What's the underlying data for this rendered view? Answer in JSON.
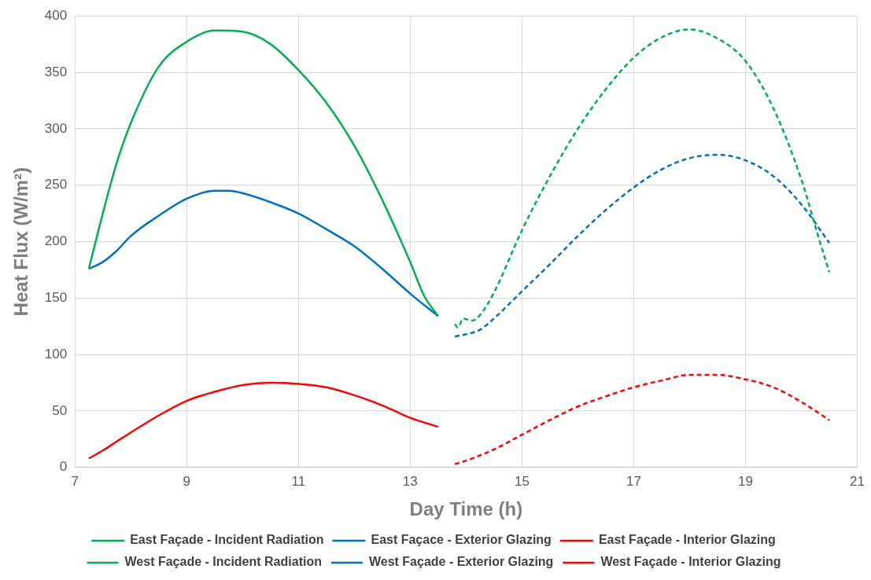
{
  "chart_data": {
    "type": "line",
    "xlabel": "Day Time (h)",
    "ylabel": "Heat Flux (W/m²)",
    "xlim": [
      7,
      21
    ],
    "xticks": [
      7,
      9,
      11,
      13,
      15,
      17,
      19,
      21
    ],
    "ylim": [
      0,
      400
    ],
    "yticks": [
      0,
      50,
      100,
      150,
      200,
      250,
      300,
      350,
      400
    ],
    "grid": true,
    "legend": "bottom",
    "marker": "none",
    "series": [
      {
        "name": "East Façade - Incident Radiation",
        "color": "#00b050",
        "line_style": "solid",
        "x": [
          7.25,
          7.5,
          7.75,
          8,
          8.5,
          9,
          9.5,
          10,
          10.5,
          11,
          11.5,
          12,
          12.5,
          13,
          13.25,
          13.5
        ],
        "values": [
          176,
          225,
          270,
          305,
          355,
          377,
          387,
          386,
          375,
          352,
          323,
          285,
          237,
          182,
          152,
          134
        ]
      },
      {
        "name": "East Façace - Exterior Glazing",
        "color": "#0070c0",
        "line_style": "solid",
        "x": [
          7.25,
          7.5,
          7.75,
          8,
          8.5,
          9,
          9.5,
          9.75,
          10,
          10.5,
          11,
          11.5,
          12,
          12.5,
          13,
          13.5
        ],
        "values": [
          176,
          182,
          192,
          205,
          223,
          238,
          245,
          245,
          243,
          235,
          225,
          211,
          196,
          176,
          154,
          134
        ]
      },
      {
        "name": "East Façade - Interior Glazing",
        "color": "#ff0000",
        "line_style": "solid",
        "x": [
          7.25,
          7.5,
          7.75,
          8,
          8.5,
          9,
          9.5,
          10,
          10.5,
          11,
          11.5,
          12,
          12.5,
          13,
          13.5
        ],
        "values": [
          8,
          15,
          23,
          31,
          46,
          59,
          67,
          73,
          75,
          74,
          71,
          64,
          55,
          44,
          36
        ]
      },
      {
        "name": "West Façade - Incident Radiation",
        "color": "#00b050",
        "line_style": "dashed",
        "x": [
          13.8,
          13.85,
          13.95,
          14.1,
          14.25,
          14.5,
          15,
          15.5,
          16,
          16.5,
          17,
          17.5,
          18,
          18.5,
          19,
          19.5,
          20,
          20.3,
          20.5
        ],
        "values": [
          127,
          124,
          132,
          130,
          135,
          155,
          210,
          258,
          300,
          335,
          363,
          381,
          388,
          380,
          360,
          318,
          255,
          205,
          173
        ]
      },
      {
        "name": "West Façade - Exterior Glazing",
        "color": "#0070c0",
        "line_style": "dashed",
        "x": [
          13.8,
          14,
          14.25,
          14.5,
          15,
          15.5,
          16,
          16.5,
          17,
          17.5,
          18,
          18.5,
          19,
          19.5,
          20,
          20.5
        ],
        "values": [
          116,
          118,
          122,
          132,
          156,
          180,
          205,
          228,
          248,
          264,
          274,
          277,
          272,
          258,
          233,
          199
        ]
      },
      {
        "name": "West Façade - Interior Glazing",
        "color": "#ff0000",
        "line_style": "dashed",
        "x": [
          13.8,
          14,
          14.5,
          15,
          15.5,
          16,
          16.5,
          17,
          17.5,
          18,
          18.5,
          19,
          19.5,
          20,
          20.5
        ],
        "values": [
          3,
          6,
          16,
          29,
          42,
          54,
          63,
          71,
          77,
          82,
          82,
          78,
          71,
          58,
          42
        ]
      }
    ]
  }
}
